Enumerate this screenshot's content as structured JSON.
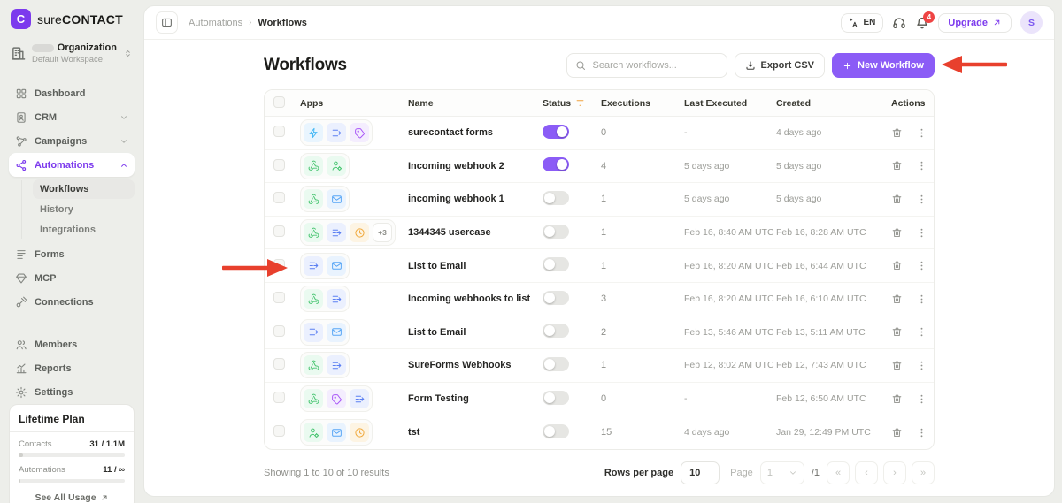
{
  "brand": {
    "logo_letter": "C",
    "name_light": "sure",
    "name_bold": "CONTACT"
  },
  "workspace": {
    "org_label": "Organization",
    "subtitle": "Default Workspace"
  },
  "sidebar": {
    "items": [
      {
        "label": "Dashboard",
        "icon": "dashboard-icon"
      },
      {
        "label": "CRM",
        "icon": "crm-icon",
        "chevron": "down"
      },
      {
        "label": "Campaigns",
        "icon": "campaigns-icon",
        "chevron": "down"
      },
      {
        "label": "Automations",
        "icon": "automations-icon",
        "chevron": "up",
        "active": true,
        "children": [
          {
            "label": "Workflows",
            "active": true
          },
          {
            "label": "History"
          },
          {
            "label": "Integrations"
          }
        ]
      },
      {
        "label": "Forms",
        "icon": "forms-icon"
      },
      {
        "label": "MCP",
        "icon": "mcp-icon"
      },
      {
        "label": "Connections",
        "icon": "connections-icon"
      }
    ],
    "secondary": [
      {
        "label": "Members",
        "icon": "members-icon"
      },
      {
        "label": "Reports",
        "icon": "reports-icon"
      },
      {
        "label": "Settings",
        "icon": "settings-icon"
      }
    ],
    "plan": {
      "title": "Lifetime Plan",
      "usage": [
        {
          "label": "Contacts",
          "value": "31 / 1.1M",
          "percent": 4
        },
        {
          "label": "Automations",
          "value": "11 / ∞",
          "percent": 2
        }
      ],
      "link_label": "See All Usage"
    }
  },
  "topbar": {
    "breadcrumb": {
      "parent": "Automations",
      "separator": "›",
      "current": "Workflows"
    },
    "language": "EN",
    "notification_count": "4",
    "upgrade_label": "Upgrade",
    "avatar_initial": "S"
  },
  "page": {
    "title": "Workflows",
    "search_placeholder": "Search workflows...",
    "export_label": "Export CSV",
    "new_workflow_label": "New Workflow"
  },
  "table": {
    "columns": {
      "apps": "Apps",
      "name": "Name",
      "status": "Status",
      "executions": "Executions",
      "last_executed": "Last Executed",
      "created": "Created",
      "actions": "Actions"
    },
    "rows": [
      {
        "apps": [
          "zap-icon",
          "list-arrow-icon",
          "tag-icon"
        ],
        "name": "surecontact forms",
        "status_on": true,
        "executions": "0",
        "last_executed": "-",
        "created": "4 days ago"
      },
      {
        "apps": [
          "webhook-icon",
          "user-gear-icon"
        ],
        "name": "Incoming webhook 2",
        "status_on": true,
        "executions": "4",
        "last_executed": "5 days ago",
        "created": "5 days ago"
      },
      {
        "apps": [
          "webhook-icon",
          "mail-icon"
        ],
        "name": "incoming webhook 1",
        "status_on": false,
        "executions": "1",
        "last_executed": "5 days ago",
        "created": "5 days ago"
      },
      {
        "apps": [
          "webhook-icon",
          "list-arrow-icon",
          "clock-icon"
        ],
        "extra": "+3",
        "name": "1344345 usercase",
        "status_on": false,
        "executions": "1",
        "last_executed": "Feb 16, 8:40 AM UTC",
        "created": "Feb 16, 8:28 AM UTC"
      },
      {
        "apps": [
          "list-arrow-icon",
          "mail-icon"
        ],
        "name": "List to Email",
        "status_on": false,
        "executions": "1",
        "last_executed": "Feb 16, 8:20 AM UTC",
        "created": "Feb 16, 6:44 AM UTC"
      },
      {
        "apps": [
          "webhook-icon",
          "list-arrow-icon"
        ],
        "name": "Incoming webhooks to list",
        "status_on": false,
        "executions": "3",
        "last_executed": "Feb 16, 8:20 AM UTC",
        "created": "Feb 16, 6:10 AM UTC"
      },
      {
        "apps": [
          "list-arrow-icon",
          "mail-icon"
        ],
        "name": "List to Email",
        "status_on": false,
        "executions": "2",
        "last_executed": "Feb 13, 5:46 AM UTC",
        "created": "Feb 13, 5:11 AM UTC"
      },
      {
        "apps": [
          "webhook-icon",
          "list-arrow-icon"
        ],
        "name": "SureForms Webhooks",
        "status_on": false,
        "executions": "1",
        "last_executed": "Feb 12, 8:02 AM UTC",
        "created": "Feb 12, 7:43 AM UTC"
      },
      {
        "apps": [
          "webhook-icon",
          "tag-icon",
          "list-arrow-icon"
        ],
        "name": "Form Testing",
        "status_on": false,
        "executions": "0",
        "last_executed": "-",
        "created": "Feb 12, 6:50 AM UTC"
      },
      {
        "apps": [
          "user-gear-icon",
          "mail-icon",
          "clock-icon"
        ],
        "name": "tst",
        "status_on": false,
        "executions": "15",
        "last_executed": "4 days ago",
        "created": "Jan 29, 12:49 PM UTC"
      }
    ]
  },
  "footer": {
    "summary": "Showing 1 to 10 of 10 results",
    "rows_per_page_label": "Rows per page",
    "rows_per_page_value": "10",
    "page_label": "Page",
    "page_value": "1",
    "page_total": "/1",
    "pagination": [
      "«",
      "‹",
      "›",
      "»"
    ]
  },
  "colors": {
    "accent": "#7c3aed",
    "accent_button": "#8b5cf6",
    "toggle_on": "#8b5cf6",
    "badge_red": "#ef4444",
    "arrow_red": "#e8402d",
    "filter_orange": "#f0a13c",
    "app_icons": {
      "zap-icon": {
        "fg": "#45b8f5",
        "bg": "#e9f5fe"
      },
      "list-arrow-icon": {
        "fg": "#5b7ff2",
        "bg": "#ebf0fe"
      },
      "tag-icon": {
        "fg": "#a855f7",
        "bg": "#f4edfe"
      },
      "webhook-icon": {
        "fg": "#46c46f",
        "bg": "#eafaf0"
      },
      "user-gear-icon": {
        "fg": "#46c46f",
        "bg": "#eafaf0"
      },
      "mail-icon": {
        "fg": "#58a6f5",
        "bg": "#e9f3fe"
      },
      "clock-icon": {
        "fg": "#f0a737",
        "bg": "#fdf4e3"
      }
    }
  }
}
